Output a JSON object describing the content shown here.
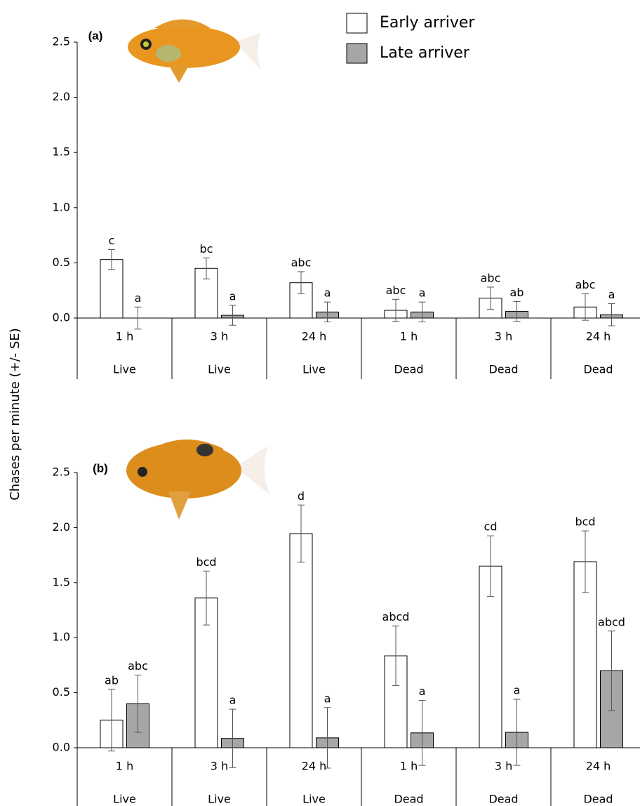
{
  "ylabel": "Chases per minute (+/- SE)",
  "chart_data": [
    {
      "type": "bar",
      "panel": "(a)",
      "categories": [
        "1 h",
        "3 h",
        "24 h",
        "1 h",
        "3 h",
        "24 h"
      ],
      "groups": [
        "Live",
        "Live",
        "Live",
        "Dead",
        "Dead",
        "Dead"
      ],
      "ylim": [
        0,
        2.5
      ],
      "yticks": [
        {
          "value": 0,
          "label": "0.0"
        },
        {
          "value": 0.5,
          "label": "0.5"
        },
        {
          "value": 1,
          "label": "1.0"
        },
        {
          "value": 1.5,
          "label": "1.5"
        },
        {
          "value": 2,
          "label": "2.0"
        },
        {
          "value": 2.5,
          "label": "2.5"
        }
      ],
      "series": [
        {
          "name": "Early arriver",
          "color": "#ffffff",
          "values": [
            0.53,
            0.45,
            0.32,
            0.07,
            0.18,
            0.1
          ],
          "errors": [
            0.09,
            0.095,
            0.1,
            0.1,
            0.1,
            0.12
          ],
          "letters": [
            "c",
            "bc",
            "abc",
            "abc",
            "abc",
            "abc"
          ]
        },
        {
          "name": "Late arriver",
          "color": "#a6a6a6",
          "values": [
            0.0,
            0.025,
            0.055,
            0.055,
            0.06,
            0.03
          ],
          "errors": [
            0.1,
            0.09,
            0.09,
            0.09,
            0.09,
            0.1
          ],
          "letters": [
            "a",
            "a",
            "a",
            "a",
            "ab",
            "a"
          ]
        }
      ]
    },
    {
      "type": "bar",
      "panel": "(b)",
      "categories": [
        "1 h",
        "3 h",
        "24 h",
        "1 h",
        "3 h",
        "24 h"
      ],
      "groups": [
        "Live",
        "Live",
        "Live",
        "Dead",
        "Dead",
        "Dead"
      ],
      "ylim": [
        0,
        2.5
      ],
      "yticks": [
        {
          "value": 0,
          "label": "0.0"
        },
        {
          "value": 0.5,
          "label": "0.5"
        },
        {
          "value": 1,
          "label": "1.0"
        },
        {
          "value": 1.5,
          "label": "1.5"
        },
        {
          "value": 2,
          "label": "2.0"
        },
        {
          "value": 2.5,
          "label": "2.5"
        }
      ],
      "series": [
        {
          "color": "#ffffff",
          "values": [
            0.25,
            1.36,
            1.945,
            0.835,
            1.65,
            1.69
          ],
          "errors": [
            0.28,
            0.245,
            0.26,
            0.27,
            0.275,
            0.28
          ],
          "letters": [
            "ab",
            "bcd",
            "d",
            "abcd",
            "cd",
            "bcd"
          ]
        },
        {
          "color": "#a6a6a6",
          "values": [
            0.4,
            0.085,
            0.09,
            0.135,
            0.14,
            0.7
          ],
          "errors": [
            0.26,
            0.265,
            0.275,
            0.295,
            0.3,
            0.36
          ],
          "letters": [
            "abc",
            "a",
            "a",
            "a",
            "a",
            "abcd"
          ]
        }
      ]
    }
  ]
}
